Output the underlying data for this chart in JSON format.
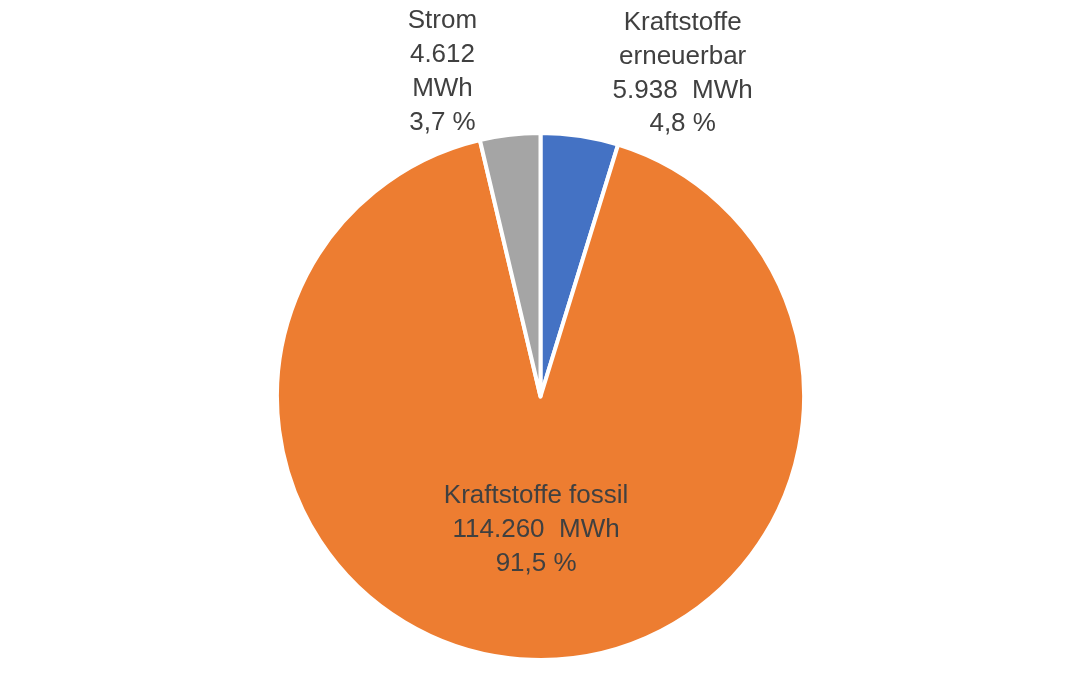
{
  "chart_data": {
    "type": "pie",
    "categories": [
      "Kraftstoffe\nerneuerbar",
      "Kraftstoffe fossil",
      "Strom"
    ],
    "values": [
      5938,
      114260,
      4612
    ],
    "colors": [
      "#4472c4",
      "#ed7d31",
      "#a5a5a5"
    ],
    "value_labels": [
      "5.938  MWh\n4,8 %",
      "114.260  MWh\n91,5 %",
      "4.612\nMWh\n3,7 %"
    ],
    "legend": false
  }
}
